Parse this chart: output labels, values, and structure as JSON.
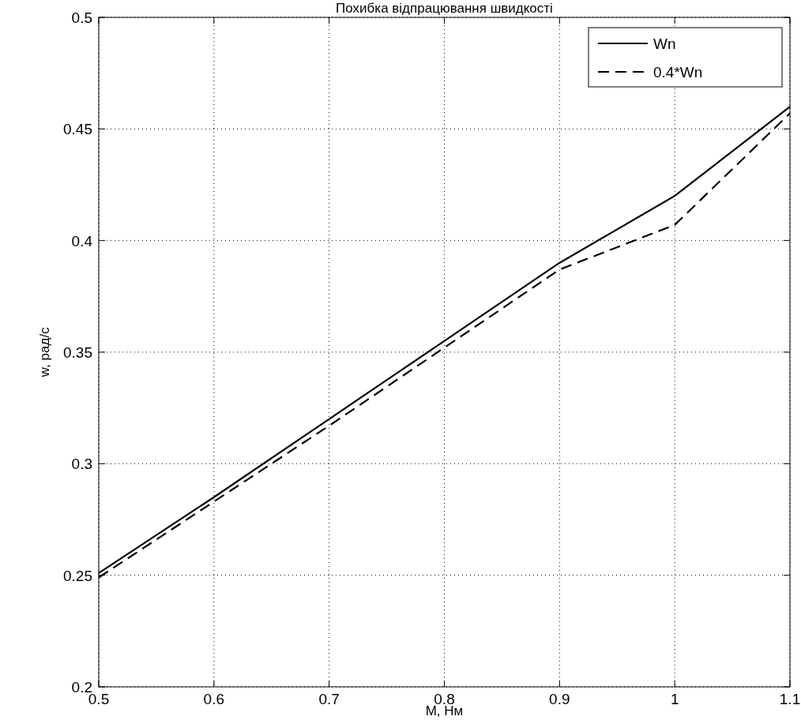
{
  "chart_data": {
    "type": "line",
    "title": "Похибка відпрацювання швидкості",
    "xlabel": "M, Нм",
    "ylabel": "w, рад/с",
    "x": [
      0.5,
      0.6,
      0.7,
      0.8,
      0.9,
      1.0,
      1.1
    ],
    "series": [
      {
        "name": "Wn",
        "color": "#000000",
        "line_style": "solid",
        "values": [
          0.251,
          0.285,
          0.32,
          0.355,
          0.39,
          0.42,
          0.46
        ]
      },
      {
        "name": "0.4*Wn",
        "color": "#000000",
        "line_style": "dashed",
        "values": [
          0.249,
          0.283,
          0.317,
          0.352,
          0.387,
          0.407,
          0.457
        ]
      }
    ],
    "xlim": [
      0.5,
      1.1
    ],
    "xticks": [
      0.5,
      0.6,
      0.7,
      0.8,
      0.9,
      1,
      1.1
    ],
    "ylim": [
      0.2,
      0.5
    ],
    "yticks": [
      0.2,
      0.25,
      0.3,
      0.35,
      0.4,
      0.45,
      0.5
    ],
    "grid": true,
    "legend": "top right"
  }
}
